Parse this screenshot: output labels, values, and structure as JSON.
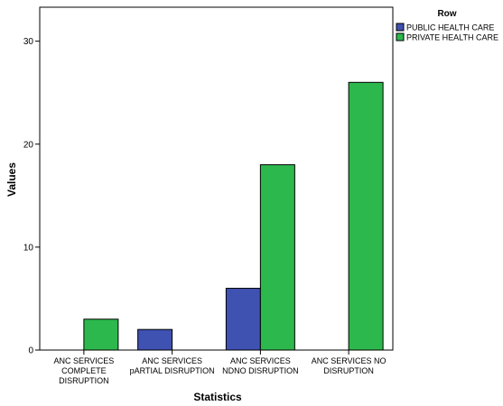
{
  "chart_data": {
    "type": "bar",
    "title": "",
    "xlabel": "Statistics",
    "ylabel": "Values",
    "ylim": [
      0,
      33.3
    ],
    "yticks": [
      0,
      10,
      20,
      30
    ],
    "grid": false,
    "legend_position": "top-right",
    "legend_title": "Row",
    "categories": [
      [
        "ANC SERVICES",
        "COMPLETE",
        "DISRUPTION"
      ],
      [
        "ANC SERVICES",
        "pARTIAL DISRUPTION"
      ],
      [
        "ANC SERVICES",
        "NDNO DISRUPTION"
      ],
      [
        "ANC SERVICES NO",
        "DISRUPTION"
      ]
    ],
    "series": [
      {
        "name": "PUBLIC HEALTH CARE",
        "color": "#3f51b1",
        "values": [
          0,
          2,
          6,
          0
        ]
      },
      {
        "name": "PRIVATE HEALTH CARE",
        "color": "#2db84d",
        "values": [
          3,
          0,
          18,
          26
        ]
      }
    ]
  }
}
